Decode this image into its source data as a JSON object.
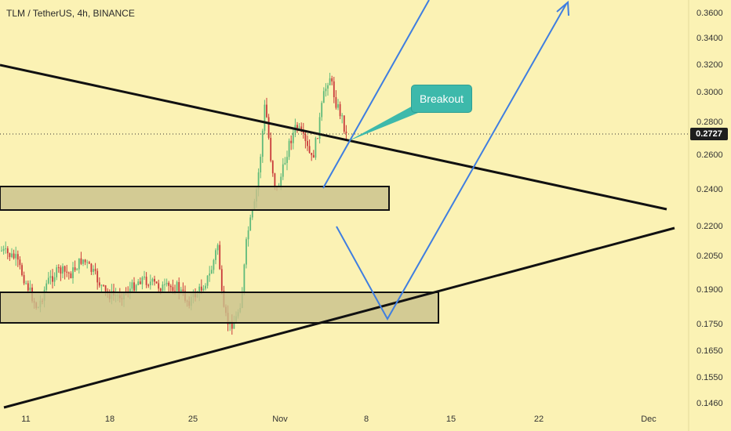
{
  "chart_data": {
    "type": "candlestick",
    "title": "TLM / TetherUS, 4h, BINANCE",
    "y_ticks": [
      "0.3600",
      "0.3400",
      "0.3200",
      "0.3000",
      "0.2800",
      "0.2600",
      "0.2400",
      "0.2200",
      "0.2050",
      "0.1900",
      "0.1750",
      "0.1650",
      "0.1550",
      "0.1460"
    ],
    "x_ticks": [
      "11",
      "18",
      "25",
      "Nov",
      "8",
      "15",
      "22",
      "Dec"
    ],
    "last_price": "0.2727",
    "annotation": "Breakout",
    "approx_price_range": [
      0.158,
      0.334
    ],
    "colors": {
      "background": "#fbf2b4",
      "up": "#5fba7a",
      "down": "#c93a3a",
      "trendline": "#111111",
      "projection": "#3f7ee0",
      "zone": "#c9c08c",
      "callout": "#3db9ab"
    }
  }
}
